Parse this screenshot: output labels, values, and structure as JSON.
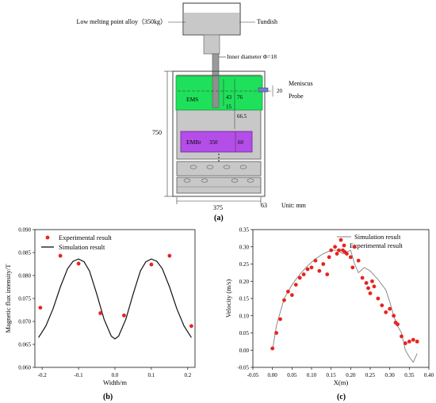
{
  "colors": {
    "ems_green": "#1fe05a",
    "embr_purple": "#b44ee8",
    "steel_gray": "#c8c8c8",
    "dark_gray": "#7a7a7a",
    "marker_red": "#e8231e",
    "line_black": "#111111",
    "sim_gray": "#7f7f7f"
  },
  "schematic": {
    "label_alloy": "Low melting point alloy（350kg）",
    "label_tundish": "Tundish",
    "label_inner_diameter": "Inner diameter Φ=18",
    "label_meniscus": "Meniscus",
    "label_probe": "Probe",
    "label_ems": "EMS",
    "label_embr": "EMBr",
    "dim_750": "750",
    "dim_43": "43",
    "dim_76": "76",
    "dim_15": "15",
    "dim_20": "20",
    "dim_66_5": "66.5",
    "dim_350": "350",
    "dim_60": "60",
    "dim_375": "375",
    "dim_63": "63",
    "unit": "Unit: mm",
    "caption": "(a)"
  },
  "chart_data": [
    {
      "type": "scatter",
      "panel": "b",
      "caption": "(b)",
      "xlabel": "Width/m",
      "ylabel": "Magnetic flux intensity/T",
      "xlim": [
        -0.22,
        0.22
      ],
      "ylim": [
        0.06,
        0.09
      ],
      "xticks": [
        "-0.2",
        "-0.1",
        "0.0",
        "0.1",
        "0.2"
      ],
      "xtick_values": [
        -0.2,
        -0.1,
        0.0,
        0.1,
        0.2
      ],
      "yticks": [
        "0.060",
        "0.065",
        "0.070",
        "0.075",
        "0.080",
        "0.085",
        "0.090"
      ],
      "ytick_values": [
        0.06,
        0.065,
        0.07,
        0.075,
        0.08,
        0.085,
        0.09
      ],
      "legend_position": "top-left",
      "series": [
        {
          "name": "Experimental result",
          "style": "markers",
          "x": [
            -0.205,
            -0.15,
            -0.1,
            -0.04,
            0.025,
            0.1,
            0.15,
            0.21
          ],
          "y": [
            0.073,
            0.0843,
            0.0826,
            0.0718,
            0.0713,
            0.0824,
            0.0843,
            0.069
          ]
        },
        {
          "name": "Simulation result",
          "style": "line",
          "x": [
            -0.21,
            -0.19,
            -0.17,
            -0.15,
            -0.13,
            -0.115,
            -0.1,
            -0.085,
            -0.07,
            -0.05,
            -0.03,
            -0.01,
            0.0,
            0.01,
            0.03,
            0.05,
            0.07,
            0.085,
            0.1,
            0.115,
            0.13,
            0.15,
            0.17,
            0.19,
            0.21
          ],
          "y": [
            0.0665,
            0.069,
            0.0728,
            0.0775,
            0.0815,
            0.0831,
            0.0836,
            0.083,
            0.081,
            0.076,
            0.0705,
            0.0668,
            0.0662,
            0.0668,
            0.0705,
            0.076,
            0.081,
            0.083,
            0.0836,
            0.0831,
            0.0815,
            0.0775,
            0.0728,
            0.069,
            0.0665
          ]
        }
      ]
    },
    {
      "type": "scatter",
      "panel": "c",
      "caption": "(c)",
      "xlabel": "X(m)",
      "ylabel": "Velocity (m/s)",
      "xlim": [
        -0.05,
        0.4
      ],
      "ylim": [
        -0.05,
        0.35
      ],
      "xticks": [
        "-0.05",
        "0.00",
        "0.05",
        "0.10",
        "0.15",
        "0.20",
        "0.25",
        "0.30",
        "0.35",
        "0.40"
      ],
      "xtick_values": [
        -0.05,
        0.0,
        0.05,
        0.1,
        0.15,
        0.2,
        0.25,
        0.3,
        0.35,
        0.4
      ],
      "yticks": [
        "-0.05",
        "0.00",
        "0.05",
        "0.10",
        "0.15",
        "0.20",
        "0.25",
        "0.30",
        "0.35"
      ],
      "ytick_values": [
        -0.05,
        0.0,
        0.05,
        0.1,
        0.15,
        0.2,
        0.25,
        0.3,
        0.35
      ],
      "legend_position": "top-right",
      "series": [
        {
          "name": "Simulation result",
          "style": "line",
          "x": [
            0.0,
            0.01,
            0.02,
            0.03,
            0.05,
            0.07,
            0.09,
            0.11,
            0.13,
            0.15,
            0.165,
            0.18,
            0.19,
            0.2,
            0.21,
            0.22,
            0.235,
            0.25,
            0.27,
            0.29,
            0.3,
            0.31,
            0.32,
            0.33,
            0.34,
            0.35,
            0.36,
            0.37
          ],
          "y": [
            0.0,
            0.07,
            0.11,
            0.15,
            0.19,
            0.22,
            0.245,
            0.265,
            0.28,
            0.29,
            0.29,
            0.28,
            0.285,
            0.29,
            0.25,
            0.225,
            0.24,
            0.23,
            0.205,
            0.175,
            0.14,
            0.1,
            0.07,
            0.05,
            0.0,
            -0.02,
            -0.035,
            -0.01
          ]
        },
        {
          "name": "Experimental result",
          "style": "markers",
          "x": [
            0.0,
            0.01,
            0.02,
            0.03,
            0.04,
            0.05,
            0.06,
            0.07,
            0.08,
            0.09,
            0.1,
            0.11,
            0.12,
            0.13,
            0.14,
            0.145,
            0.15,
            0.16,
            0.165,
            0.17,
            0.175,
            0.18,
            0.185,
            0.19,
            0.2,
            0.205,
            0.21,
            0.22,
            0.23,
            0.24,
            0.245,
            0.25,
            0.255,
            0.26,
            0.27,
            0.28,
            0.29,
            0.3,
            0.31,
            0.315,
            0.32,
            0.33,
            0.34,
            0.35,
            0.36,
            0.37
          ],
          "y": [
            0.005,
            0.05,
            0.09,
            0.145,
            0.17,
            0.16,
            0.19,
            0.21,
            0.22,
            0.235,
            0.24,
            0.26,
            0.23,
            0.25,
            0.22,
            0.27,
            0.29,
            0.3,
            0.28,
            0.29,
            0.32,
            0.29,
            0.285,
            0.28,
            0.27,
            0.24,
            0.3,
            0.26,
            0.21,
            0.195,
            0.18,
            0.165,
            0.2,
            0.185,
            0.15,
            0.13,
            0.11,
            0.12,
            0.1,
            0.08,
            0.075,
            0.04,
            0.02,
            0.025,
            0.03,
            0.025
          ]
        }
      ]
    }
  ]
}
